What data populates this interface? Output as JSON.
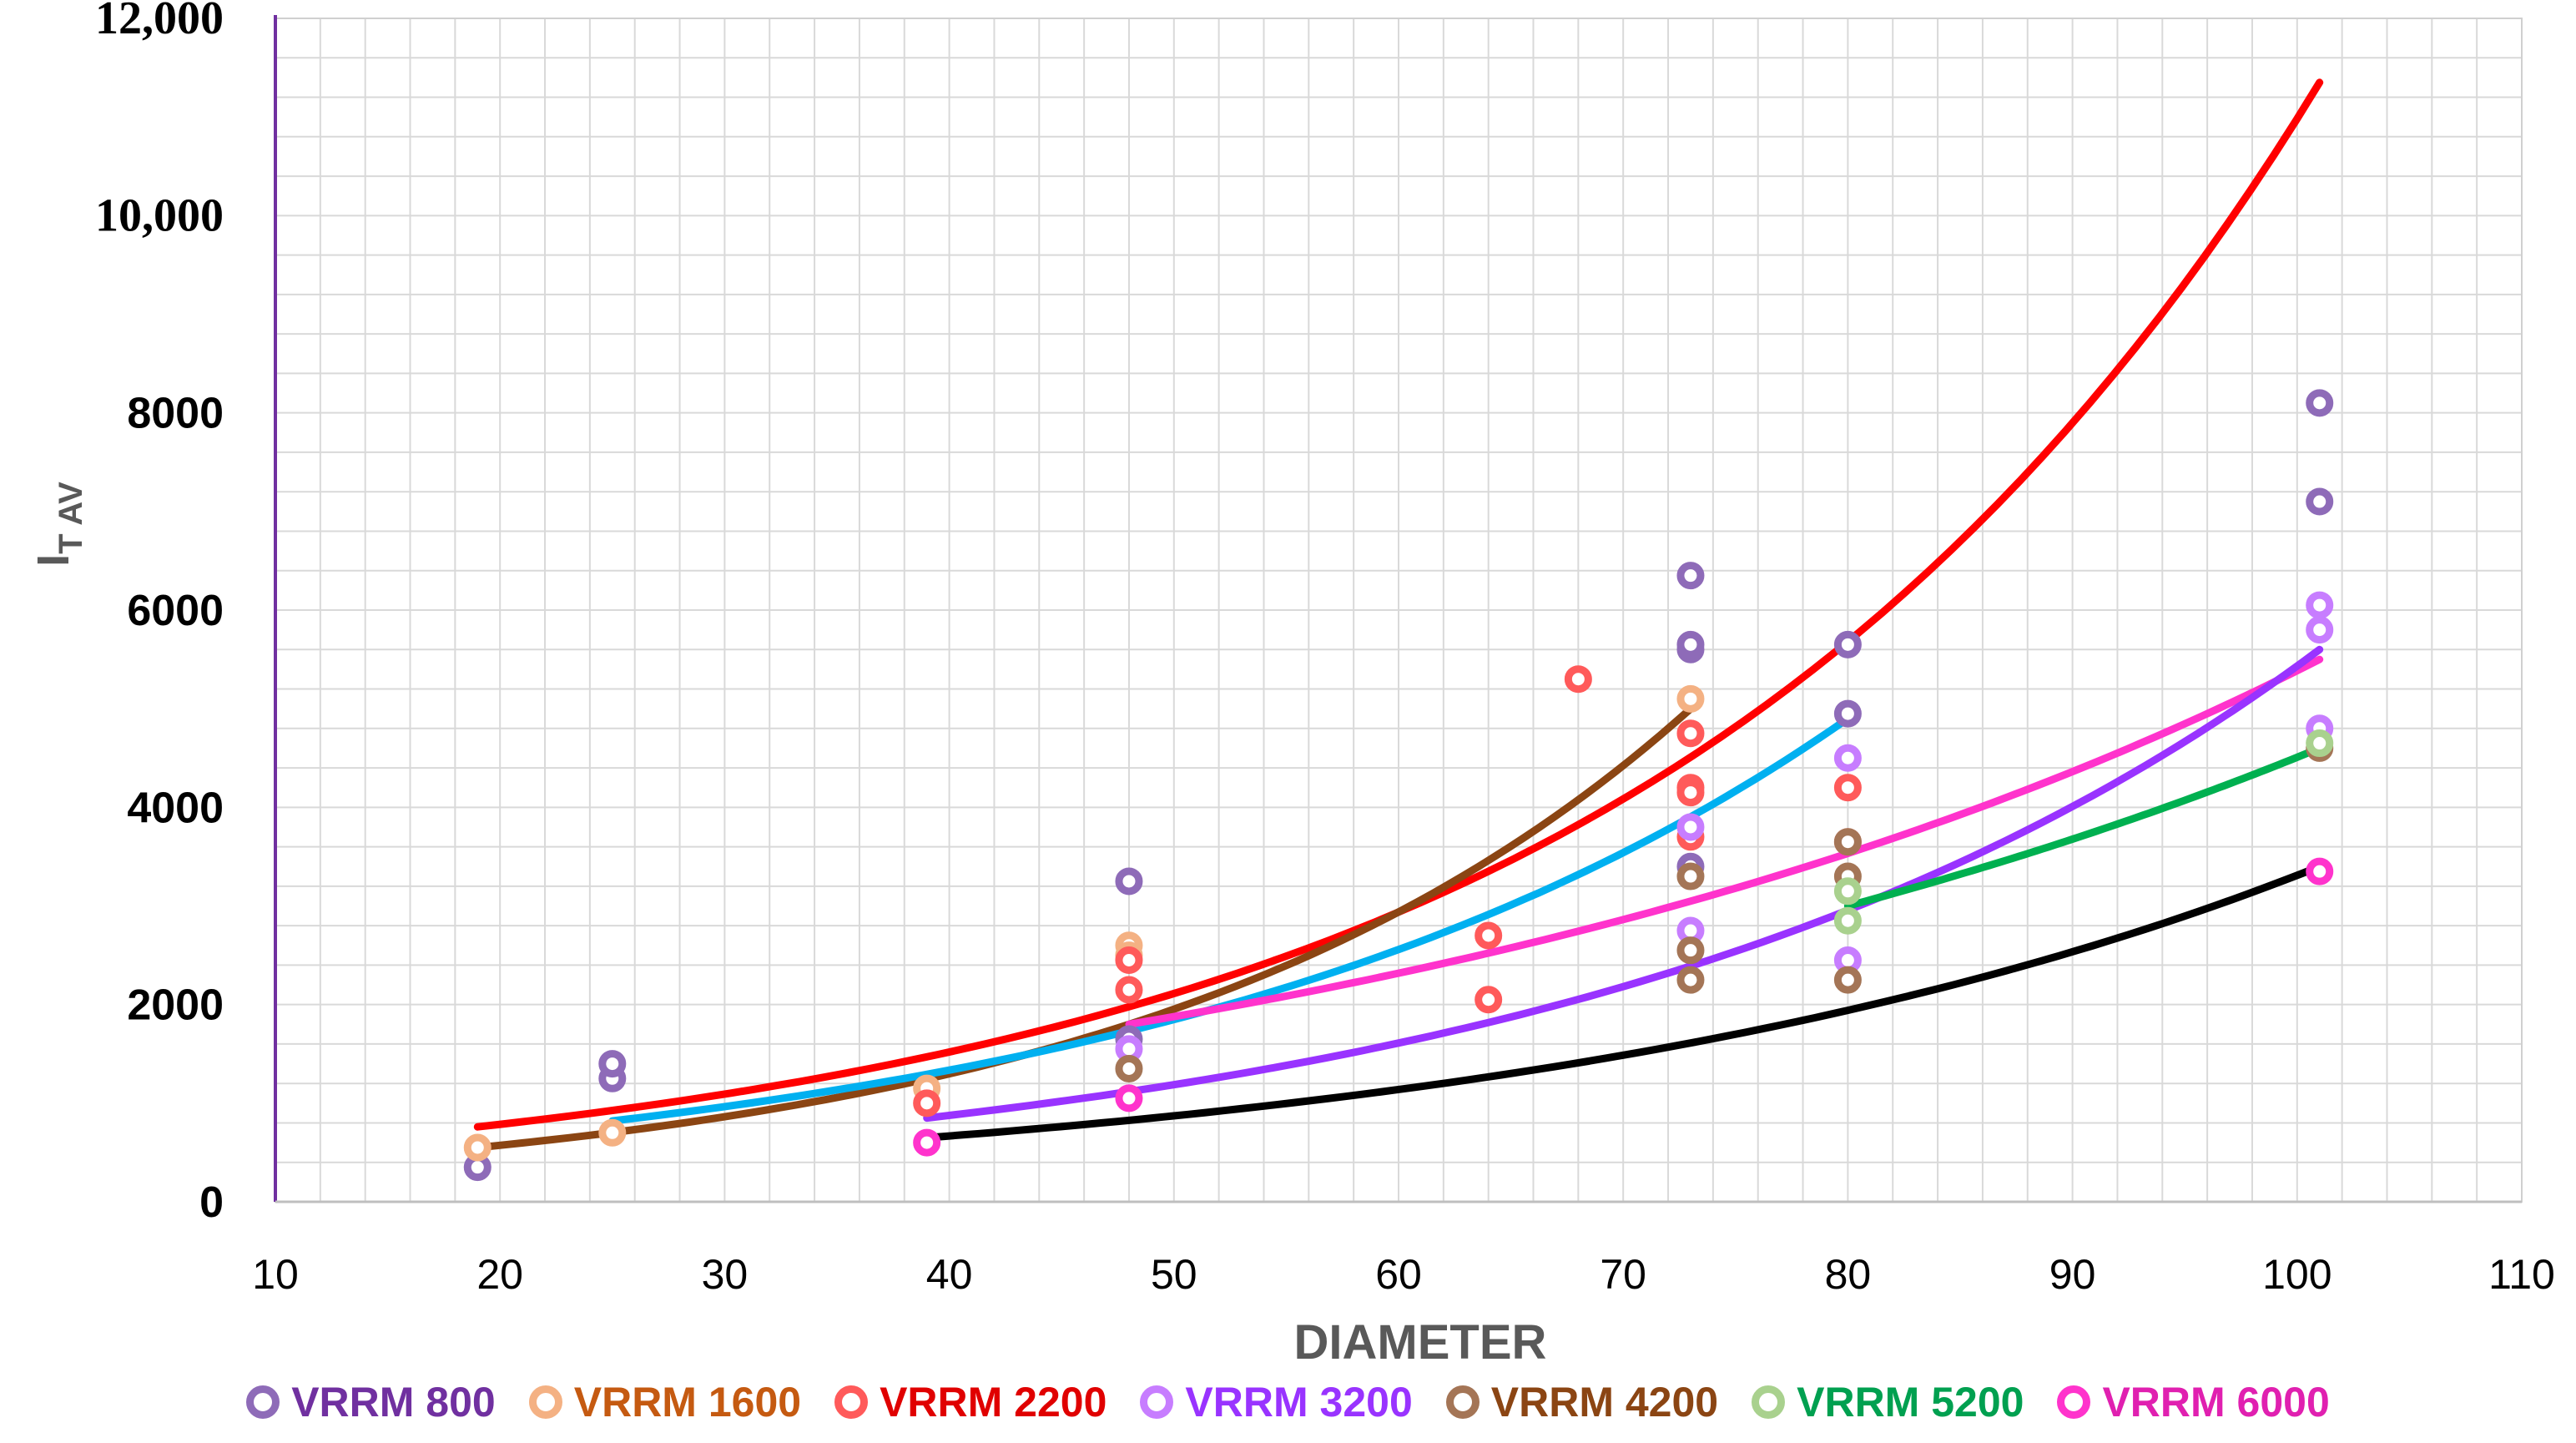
{
  "chart_data": {
    "type": "scatter",
    "xlabel": "DIAMETER",
    "ylabel_main": "I",
    "ylabel_sub": "T AV",
    "xlim": [
      10,
      110
    ],
    "ylim": [
      0,
      12000
    ],
    "x_ticks": [
      "10",
      "20",
      "30",
      "40",
      "50",
      "60",
      "70",
      "80",
      "90",
      "100",
      "110"
    ],
    "y_ticks": [
      {
        "value": 0,
        "label": "0",
        "style": "sans"
      },
      {
        "value": 2000,
        "label": "2000",
        "style": "sans"
      },
      {
        "value": 4000,
        "label": "4000",
        "style": "sans"
      },
      {
        "value": 6000,
        "label": "6000",
        "style": "sans"
      },
      {
        "value": 8000,
        "label": "8000",
        "style": "sans"
      },
      {
        "value": 10000,
        "label": "10,000",
        "style": "serif"
      },
      {
        "value": 12000,
        "label": "12,000",
        "style": "serif"
      }
    ],
    "grid": true,
    "legend_position": "bottom",
    "series": [
      {
        "name": "VRRM 800",
        "color": "#8e6bb8",
        "text_color": "#7030a0",
        "points": [
          [
            19,
            350
          ],
          [
            25,
            1250
          ],
          [
            25,
            1400
          ],
          [
            48,
            3250
          ],
          [
            48,
            1650
          ],
          [
            73,
            6350
          ],
          [
            73,
            5600
          ],
          [
            73,
            5650
          ],
          [
            73,
            3400
          ],
          [
            80,
            5650
          ],
          [
            80,
            4950
          ],
          [
            101,
            8100
          ],
          [
            101,
            7100
          ]
        ]
      },
      {
        "name": "VRRM 1600",
        "color": "#f4b183",
        "text_color": "#c55a11",
        "points": [
          [
            19,
            550
          ],
          [
            25,
            700
          ],
          [
            39,
            1150
          ],
          [
            48,
            2600
          ],
          [
            48,
            2500
          ],
          [
            73,
            5100
          ]
        ]
      },
      {
        "name": "VRRM 2200",
        "color": "#ff5a5a",
        "text_color": "#e00000",
        "points": [
          [
            39,
            1000
          ],
          [
            48,
            2450
          ],
          [
            48,
            2150
          ],
          [
            64,
            2700
          ],
          [
            64,
            2050
          ],
          [
            68,
            5300
          ],
          [
            73,
            4750
          ],
          [
            73,
            4200
          ],
          [
            73,
            4150
          ],
          [
            73,
            3700
          ],
          [
            80,
            4200
          ],
          [
            80,
            3650
          ]
        ]
      },
      {
        "name": "VRRM 3200",
        "color": "#c77dff",
        "text_color": "#9933ff",
        "points": [
          [
            48,
            1550
          ],
          [
            73,
            3800
          ],
          [
            73,
            2750
          ],
          [
            80,
            4500
          ],
          [
            80,
            2450
          ],
          [
            101,
            6050
          ],
          [
            101,
            5800
          ],
          [
            101,
            4800
          ]
        ]
      },
      {
        "name": "VRRM 4200",
        "color": "#a47556",
        "text_color": "#8b4513",
        "points": [
          [
            48,
            1350
          ],
          [
            73,
            3300
          ],
          [
            73,
            2550
          ],
          [
            73,
            2250
          ],
          [
            80,
            3650
          ],
          [
            80,
            3300
          ],
          [
            80,
            2250
          ],
          [
            101,
            4600
          ]
        ]
      },
      {
        "name": "VRRM 5200",
        "color": "#a9d18e",
        "text_color": "#00a050",
        "points": [
          [
            80,
            3150
          ],
          [
            80,
            2850
          ],
          [
            101,
            4650
          ]
        ]
      },
      {
        "name": "VRRM 6000",
        "color": "#ff33cc",
        "text_color": "#e020b0",
        "points": [
          [
            39,
            600
          ],
          [
            48,
            1050
          ],
          [
            101,
            3350
          ]
        ]
      }
    ],
    "trendlines": [
      {
        "color": "#ff0000",
        "x": [
          19,
          101
        ],
        "y_start": 760,
        "y_end": 11350
      },
      {
        "color": "#8b4513",
        "x": [
          19,
          73
        ],
        "y_start": 550,
        "y_end": 5000
      },
      {
        "color": "#00b0f0",
        "x": [
          25,
          80
        ],
        "y_start": 820,
        "y_end": 4900
      },
      {
        "color": "#ff33cc",
        "x": [
          48,
          101
        ],
        "y_start": 1800,
        "y_end": 5500
      },
      {
        "color": "#9933ff",
        "x": [
          39,
          101
        ],
        "y_start": 850,
        "y_end": 5600
      },
      {
        "color": "#00b050",
        "x": [
          80,
          101
        ],
        "y_start": 3000,
        "y_end": 4600
      },
      {
        "color": "#000000",
        "x": [
          39,
          101
        ],
        "y_start": 650,
        "y_end": 3400
      }
    ]
  }
}
